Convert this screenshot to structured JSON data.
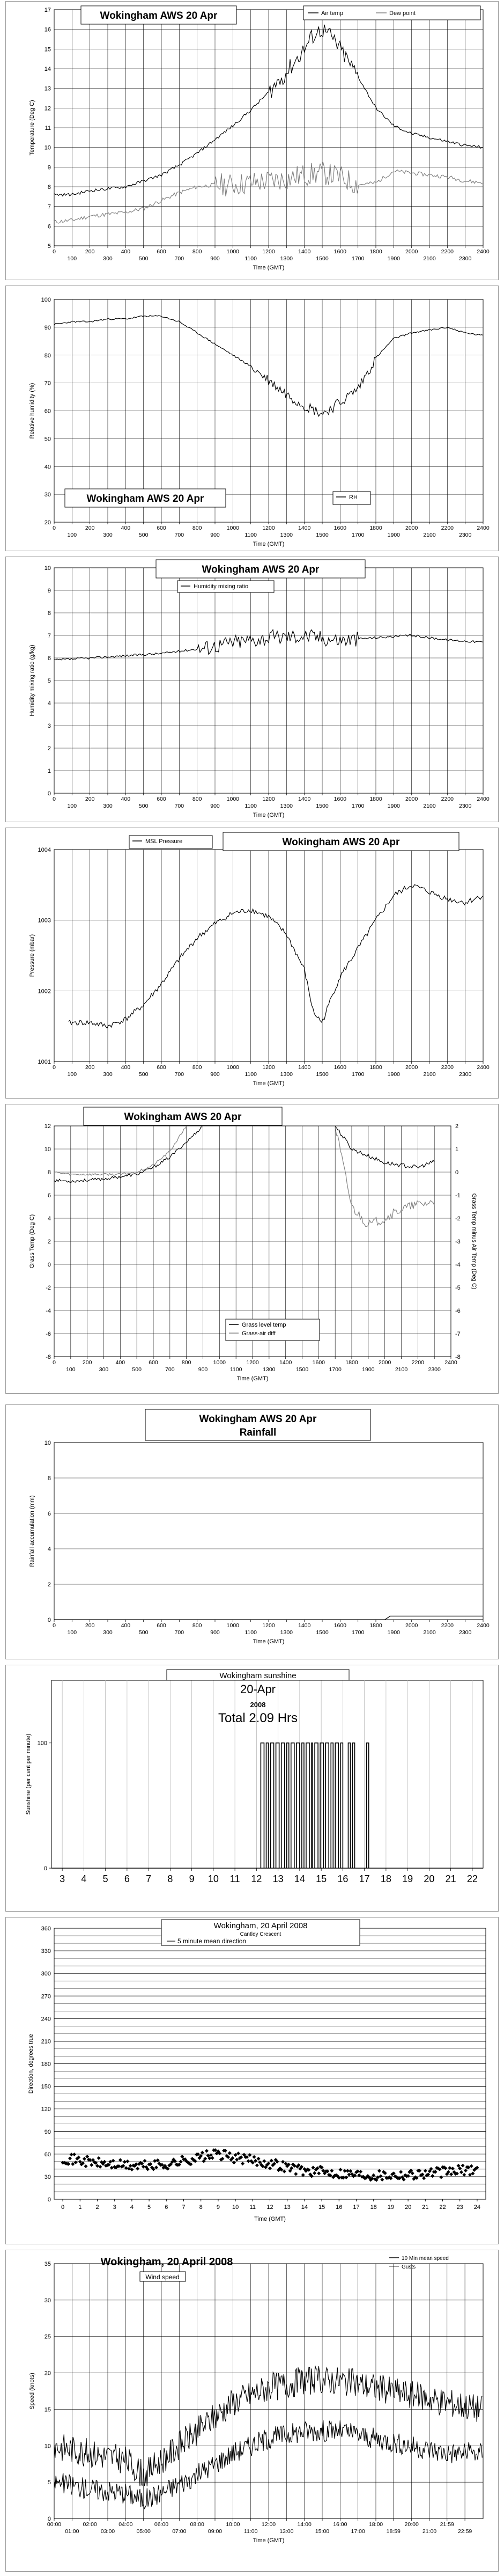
{
  "panels": [
    {
      "id": "air-temp",
      "title": "Wokingham AWS 20 Apr",
      "ylabel": "Temperature (Deg C)",
      "xlabel": "Time (GMT)",
      "legend": [
        "Air temp",
        "Dew point"
      ]
    },
    {
      "id": "rh",
      "title": "Wokingham AWS 20 Apr",
      "ylabel": "Relative humidity (%)",
      "xlabel": "Time (GMT)",
      "legend": [
        "RH"
      ]
    },
    {
      "id": "mixing",
      "title": "Wokingham AWS 20 Apr",
      "ylabel": "Humidity mixing ratio (g/kg)",
      "xlabel": "Time (GMT)",
      "legend": [
        "Humidity mixing ratio"
      ]
    },
    {
      "id": "pressure",
      "title": "Wokingham AWS 20 Apr",
      "ylabel": "Pressure (mbar)",
      "xlabel": "Time (GMT)",
      "legend": [
        "MSL Pressure"
      ]
    },
    {
      "id": "grass",
      "title": "Wokingham AWS 20 Apr",
      "ylabel": "Grass Temp (Deg C)",
      "ylabel2": "Grass Temp minus Air Temp (Deg C)",
      "xlabel": "Time (GMT)",
      "legend": [
        "Grass level temp",
        "Grass-air diff"
      ]
    },
    {
      "id": "rain",
      "title": "Wokingham AWS 20 Apr",
      "subtitle": "Rainfall",
      "ylabel": "Rainfall accumulation (mm)",
      "xlabel": "Time (GMT)"
    },
    {
      "id": "sun",
      "title": "Wokingham sunshine",
      "subtitle": "20-Apr",
      "year": "2008",
      "total": "Total 2.09 Hrs",
      "ylabel": "Sunshine (per cent per minute)"
    },
    {
      "id": "dir",
      "title": "Wokingham, 20 April 2008",
      "subtitle": "Cantley Crescent",
      "legend": [
        "5 minute mean direction"
      ],
      "ylabel": "Direction, degrees true",
      "xlabel": "Time (GMT)"
    },
    {
      "id": "speed",
      "title": "Wokingham, 20 April 2008",
      "subtitle": "Wind speed",
      "legend": [
        "10 Min mean speed",
        "Gusts"
      ],
      "ylabel": "Speed (knots)",
      "xlabel": "Time (GMT)"
    }
  ],
  "chart_data": [
    {
      "type": "line",
      "title": "Wokingham AWS 20 Apr",
      "xlabel": "Time (GMT)",
      "ylabel": "Temperature (Deg C)",
      "xlim": [
        0,
        2400
      ],
      "ylim": [
        5,
        17
      ],
      "x_ticks_top": [
        "0",
        "200",
        "400",
        "600",
        "800",
        "1000",
        "1200",
        "1400",
        "1600",
        "1800",
        "2000",
        "2200",
        "2400"
      ],
      "x_ticks_bottom": [
        "100",
        "300",
        "500",
        "700",
        "900",
        "1100",
        "1300",
        "1500",
        "1700",
        "1900",
        "2100",
        "2300"
      ],
      "y_ticks": [
        "5",
        "6",
        "7",
        "8",
        "9",
        "10",
        "11",
        "12",
        "13",
        "14",
        "15",
        "16",
        "17"
      ],
      "series": [
        {
          "name": "Air temp",
          "x": [
            0,
            100,
            200,
            300,
            400,
            500,
            600,
            700,
            800,
            900,
            1000,
            1100,
            1200,
            1300,
            1400,
            1450,
            1500,
            1550,
            1600,
            1700,
            1800,
            1900,
            2000,
            2100,
            2200,
            2300,
            2400
          ],
          "values": [
            7.6,
            7.6,
            7.8,
            7.9,
            8.0,
            8.3,
            8.6,
            9.1,
            9.7,
            10.4,
            11.1,
            11.9,
            12.8,
            13.8,
            15.0,
            15.7,
            16.0,
            15.6,
            15.0,
            13.6,
            12.0,
            11.1,
            10.7,
            10.5,
            10.3,
            10.1,
            10.0
          ],
          "color": "#000000"
        },
        {
          "name": "Dew point",
          "x": [
            0,
            100,
            200,
            300,
            400,
            500,
            600,
            700,
            800,
            900,
            1000,
            1100,
            1200,
            1300,
            1400,
            1500,
            1600,
            1700,
            1800,
            1900,
            2000,
            2100,
            2200,
            2300,
            2400
          ],
          "values": [
            6.2,
            6.3,
            6.5,
            6.6,
            6.7,
            6.9,
            7.3,
            7.7,
            8.0,
            8.1,
            8.1,
            8.2,
            8.3,
            8.4,
            8.6,
            8.7,
            8.5,
            8.1,
            8.2,
            8.8,
            8.7,
            8.6,
            8.5,
            8.3,
            8.2
          ],
          "color": "#808080"
        }
      ]
    },
    {
      "type": "line",
      "title": "Wokingham AWS 20 Apr",
      "xlabel": "Time (GMT)",
      "ylabel": "Relative humidity (%)",
      "xlim": [
        0,
        2400
      ],
      "ylim": [
        20,
        100
      ],
      "x_ticks_top": [
        "0",
        "200",
        "400",
        "600",
        "800",
        "1000",
        "1200",
        "1400",
        "1600",
        "1800",
        "2000",
        "2200",
        "2400"
      ],
      "x_ticks_bottom": [
        "100",
        "300",
        "500",
        "700",
        "900",
        "1100",
        "1300",
        "1500",
        "1700",
        "1900",
        "2100",
        "2300"
      ],
      "y_ticks": [
        "20",
        "30",
        "40",
        "50",
        "60",
        "70",
        "80",
        "90",
        "100"
      ],
      "series": [
        {
          "name": "RH",
          "x": [
            0,
            100,
            200,
            300,
            400,
            500,
            600,
            700,
            800,
            900,
            1000,
            1100,
            1200,
            1300,
            1400,
            1500,
            1600,
            1700,
            1800,
            1900,
            2000,
            2100,
            2200,
            2300,
            2400
          ],
          "values": [
            91,
            92,
            92,
            93,
            93,
            94,
            94,
            92,
            88,
            84,
            80,
            76,
            71,
            66,
            62,
            59,
            63,
            68,
            79,
            86,
            88,
            89,
            90,
            88,
            87
          ],
          "color": "#000000"
        }
      ]
    },
    {
      "type": "line",
      "title": "Wokingham AWS 20 Apr",
      "xlabel": "Time (GMT)",
      "ylabel": "Humidity mixing ratio (g/kg)",
      "xlim": [
        0,
        2400
      ],
      "ylim": [
        0,
        10
      ],
      "x_ticks_top": [
        "0",
        "200",
        "400",
        "600",
        "800",
        "1000",
        "1200",
        "1400",
        "1600",
        "1800",
        "2000",
        "2200",
        "2400"
      ],
      "x_ticks_bottom": [
        "100",
        "300",
        "500",
        "700",
        "900",
        "1100",
        "1300",
        "1500",
        "1700",
        "1900",
        "2100",
        "2300"
      ],
      "y_ticks": [
        "0",
        "1",
        "2",
        "3",
        "4",
        "5",
        "6",
        "7",
        "8",
        "9",
        "10"
      ],
      "series": [
        {
          "name": "Humidity mixing ratio",
          "x": [
            0,
            200,
            400,
            600,
            800,
            1000,
            1200,
            1400,
            1600,
            1800,
            2000,
            2200,
            2400
          ],
          "values": [
            5.9,
            6.0,
            6.1,
            6.2,
            6.4,
            6.7,
            6.9,
            7.0,
            6.8,
            6.9,
            7.0,
            6.8,
            6.7
          ],
          "color": "#000000"
        }
      ]
    },
    {
      "type": "line",
      "title": "Wokingham AWS 20 Apr",
      "xlabel": "Time (GMT)",
      "ylabel": "Pressure (mbar)",
      "xlim": [
        0,
        2400
      ],
      "ylim": [
        1001,
        1004
      ],
      "x_ticks_top": [
        "0",
        "200",
        "400",
        "600",
        "800",
        "1000",
        "1200",
        "1400",
        "1600",
        "1800",
        "2000",
        "2200",
        "2400"
      ],
      "x_ticks_bottom": [
        "100",
        "300",
        "500",
        "700",
        "900",
        "1100",
        "1300",
        "1500",
        "1700",
        "1900",
        "2100",
        "2300"
      ],
      "y_ticks": [
        "1001",
        "1002",
        "1003",
        "1004"
      ],
      "series": [
        {
          "name": "MSL Pressure",
          "x": [
            0,
            100,
            200,
            300,
            400,
            500,
            600,
            700,
            800,
            900,
            1000,
            1100,
            1200,
            1300,
            1400,
            1450,
            1500,
            1550,
            1600,
            1700,
            1800,
            1900,
            2000,
            2100,
            2200,
            2300,
            2350,
            2400
          ],
          "values": [
            1001.5,
            1001.55,
            1001.55,
            1001.5,
            1001.6,
            1001.8,
            1002.1,
            1002.45,
            1002.75,
            1002.95,
            1003.1,
            1003.15,
            1003.05,
            1002.8,
            1002.3,
            1001.7,
            1001.55,
            1001.9,
            1002.2,
            1002.6,
            1003.0,
            1003.35,
            1003.5,
            1003.4,
            1003.3,
            1003.25,
            1003.3,
            1003.35
          ],
          "color": "#000000"
        }
      ]
    },
    {
      "type": "line",
      "title": "Wokingham AWS 20 Apr",
      "xlabel": "Time (GMT)",
      "ylabel": "Grass Temp (Deg C)",
      "y2label": "Grass Temp minus Air Temp (Deg C)",
      "xlim": [
        0,
        2400
      ],
      "ylim": [
        -8,
        12
      ],
      "y2lim": [
        -8,
        2
      ],
      "x_ticks_top": [
        "0",
        "200",
        "400",
        "600",
        "800",
        "1000",
        "1200",
        "1400",
        "1600",
        "1800",
        "2000",
        "2200",
        "2400"
      ],
      "x_ticks_bottom": [
        "100",
        "300",
        "500",
        "700",
        "900",
        "1100",
        "1300",
        "1500",
        "1700",
        "1900",
        "2100",
        "2300"
      ],
      "y_ticks": [
        "-8",
        "-6",
        "-4",
        "-2",
        "0",
        "2",
        "4",
        "6",
        "8",
        "10",
        "12"
      ],
      "y2_ticks": [
        "-8",
        "-7",
        "-6",
        "-5",
        "-4",
        "-3",
        "-2",
        "-1",
        "0",
        "1",
        "2"
      ],
      "series": [
        {
          "name": "Grass level temp",
          "axis": "left",
          "x": [
            0,
            100,
            200,
            300,
            400,
            500,
            600,
            700,
            800,
            900,
            1700,
            1800,
            1900,
            2000,
            2100,
            2200,
            2300
          ],
          "values": [
            7.3,
            7.2,
            7.3,
            7.4,
            7.6,
            7.8,
            8.4,
            9.3,
            10.6,
            12.0,
            12.0,
            10.0,
            9.4,
            8.8,
            8.6,
            8.4,
            8.9
          ],
          "color": "#000000"
        },
        {
          "name": "Grass-air diff",
          "axis": "right",
          "x": [
            0,
            100,
            200,
            300,
            400,
            500,
            600,
            700,
            800,
            1700,
            1800,
            1900,
            2000,
            2100,
            2200,
            2300
          ],
          "values": [
            0.0,
            -0.1,
            -0.1,
            -0.1,
            -0.1,
            0.0,
            0.3,
            0.9,
            2.0,
            2.0,
            -1.5,
            -2.3,
            -2.0,
            -1.6,
            -1.4,
            -1.3
          ],
          "color": "#808080"
        }
      ]
    },
    {
      "type": "line",
      "title": "Wokingham AWS 20 Apr",
      "subtitle": "Rainfall",
      "xlabel": "Time (GMT)",
      "ylabel": "Rainfall accumulation (mm)",
      "xlim": [
        0,
        2400
      ],
      "ylim": [
        0,
        10
      ],
      "x_ticks_top": [
        "0",
        "200",
        "400",
        "600",
        "800",
        "1000",
        "1200",
        "1400",
        "1600",
        "1800",
        "2000",
        "2200",
        "2400"
      ],
      "x_ticks_bottom": [
        "100",
        "300",
        "500",
        "700",
        "900",
        "1100",
        "1300",
        "1500",
        "1700",
        "1900",
        "2100",
        "2300"
      ],
      "y_ticks": [
        "0",
        "2",
        "4",
        "6",
        "8",
        "10"
      ],
      "series": [
        {
          "name": "Rainfall",
          "x": [
            0,
            1850,
            1880,
            2400
          ],
          "values": [
            0,
            0,
            0.2,
            0.2
          ],
          "color": "#000000"
        }
      ]
    },
    {
      "type": "line",
      "title": "Wokingham sunshine",
      "subtitle": "20-Apr",
      "xlabel": "",
      "ylabel": "Sunshine (per cent per minute)",
      "xlim": [
        2.5,
        22.5
      ],
      "ylim": [
        0,
        150
      ],
      "x_ticks": [
        "3",
        "4",
        "5",
        "6",
        "7",
        "8",
        "9",
        "10",
        "11",
        "12",
        "13",
        "14",
        "15",
        "16",
        "17",
        "18",
        "19",
        "20",
        "21",
        "22"
      ],
      "y_ticks": [
        "0",
        "100"
      ],
      "series": [
        {
          "name": "Sunshine",
          "bursts": [
            [
              12.2,
              12.35
            ],
            [
              12.45,
              12.55
            ],
            [
              12.65,
              12.8
            ],
            [
              12.9,
              13.05
            ],
            [
              13.15,
              13.3
            ],
            [
              13.4,
              13.5
            ],
            [
              13.6,
              13.75
            ],
            [
              13.85,
              14.0
            ],
            [
              14.1,
              14.2
            ],
            [
              14.3,
              14.45
            ],
            [
              14.55,
              14.6
            ],
            [
              14.7,
              14.85
            ],
            [
              14.95,
              15.1
            ],
            [
              15.2,
              15.35
            ],
            [
              15.45,
              15.55
            ],
            [
              15.65,
              15.8
            ],
            [
              15.9,
              16.0
            ],
            [
              16.25,
              16.35
            ],
            [
              16.45,
              16.55
            ],
            [
              17.1,
              17.2
            ]
          ],
          "color": "#000000"
        }
      ]
    },
    {
      "type": "scatter",
      "title": "Wokingham, 20 April 2008",
      "subtitle": "Cantley Crescent",
      "xlabel": "Time (GMT)",
      "ylabel": "Direction, degrees true",
      "xlim": [
        -0.5,
        24.5
      ],
      "ylim": [
        0,
        360
      ],
      "x_ticks": [
        "0",
        "1",
        "2",
        "3",
        "4",
        "5",
        "6",
        "7",
        "8",
        "9",
        "10",
        "11",
        "12",
        "13",
        "14",
        "15",
        "16",
        "17",
        "18",
        "19",
        "20",
        "21",
        "22",
        "23",
        "24"
      ],
      "y_ticks": [
        "0",
        "30",
        "60",
        "90",
        "120",
        "150",
        "180",
        "210",
        "240",
        "270",
        "300",
        "330",
        "360"
      ],
      "series": [
        {
          "name": "5 minute mean direction",
          "x": [
            0,
            2,
            4,
            6,
            8,
            9,
            10,
            12,
            14,
            16,
            18,
            20,
            22,
            24
          ],
          "values": [
            55,
            48,
            44,
            46,
            56,
            60,
            55,
            48,
            38,
            35,
            32,
            33,
            36,
            40
          ],
          "color": "#000000"
        }
      ]
    },
    {
      "type": "line",
      "title": "Wokingham, 20 April 2008",
      "subtitle": "Wind speed",
      "xlabel": "Time (GMT)",
      "ylabel": "Speed (knots)",
      "xlim": [
        0,
        24
      ],
      "ylim": [
        0,
        35
      ],
      "x_ticks_top": [
        "00:00",
        "02:00",
        "04:00",
        "06:00",
        "08:00",
        "10:00",
        "12:00",
        "14:00",
        "16:00",
        "18:00",
        "20:00",
        "21:59"
      ],
      "x_ticks_bottom": [
        "01:00",
        "03:00",
        "05:00",
        "07:00",
        "09:00",
        "11:00",
        "13:00",
        "15:00",
        "17:00",
        "18:59",
        "21:00",
        "22:59"
      ],
      "y_ticks": [
        "0",
        "5",
        "10",
        "15",
        "20",
        "25",
        "30",
        "35"
      ],
      "series": [
        {
          "name": "10 Min mean speed",
          "x": [
            0,
            2,
            4,
            5,
            6,
            8,
            10,
            12,
            14,
            16,
            18,
            20,
            22,
            24
          ],
          "values": [
            5,
            4,
            3.5,
            2.5,
            3.5,
            6,
            9,
            11,
            12,
            12,
            11,
            10,
            9,
            9
          ],
          "color": "#000000"
        },
        {
          "name": "Gusts",
          "x": [
            0,
            2,
            4,
            5,
            6,
            8,
            10,
            12,
            14,
            16,
            18,
            20,
            22,
            24
          ],
          "values": [
            8,
            7,
            6,
            4,
            6,
            10,
            14,
            16,
            17,
            17,
            16,
            15,
            14,
            13
          ],
          "color": "#000000"
        }
      ]
    }
  ]
}
